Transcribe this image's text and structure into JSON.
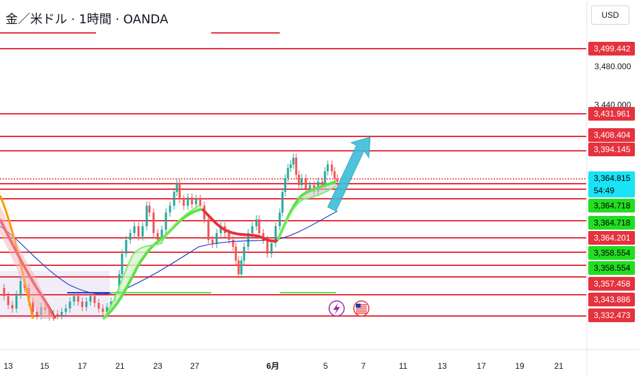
{
  "header": {
    "title": "金／米ドル · 1時間 · OANDA",
    "currency": "USD"
  },
  "colors": {
    "level_line": "#e5323e",
    "bull_candle": "#26a69a",
    "bear_candle": "#ef5350",
    "green_ribbon": "#5fe04a",
    "red_ribbon": "#e5323e",
    "blue_ma": "#2440c8",
    "orange_ma": "#ff9800",
    "arrow": "#3bbdd8",
    "price_tag_cyan": "#19e3f5",
    "price_tag_green": "#22dd22"
  },
  "icons": {
    "flash_marker": "lightning-icon",
    "event_marker": "us-flag-icon"
  },
  "chart_data": {
    "type": "candlestick",
    "symbol": "金／米ドル",
    "timeframe": "1時間",
    "source": "OANDA",
    "y_ticks": [
      "3,480.000",
      "3,440.000"
    ],
    "x_ticks": [
      "13",
      "15",
      "17",
      "21",
      "23",
      "27",
      "6月",
      "5",
      "7",
      "11",
      "13",
      "17",
      "19",
      "21"
    ],
    "current_price": "3,364.815",
    "countdown": "54:49",
    "price_tags": [
      {
        "label": "3,499.442",
        "color": "red"
      },
      {
        "label": "3,431.961",
        "color": "red"
      },
      {
        "label": "3,408.404",
        "color": "red"
      },
      {
        "label": "3,394.145",
        "color": "red"
      },
      {
        "label": "3,364.718",
        "color": "green"
      },
      {
        "label": "3,364.718",
        "color": "green"
      },
      {
        "label": "3,364.201",
        "color": "red"
      },
      {
        "label": "3,358.554",
        "color": "green"
      },
      {
        "label": "3,358.554",
        "color": "green"
      },
      {
        "label": "3,357.458",
        "color": "red"
      },
      {
        "label": "3,343.886",
        "color": "red"
      },
      {
        "label": "3,332.473",
        "color": "red"
      }
    ],
    "annotations": [
      "up-arrow projection",
      "lightning event marker",
      "US economic event marker"
    ],
    "grid": false
  }
}
